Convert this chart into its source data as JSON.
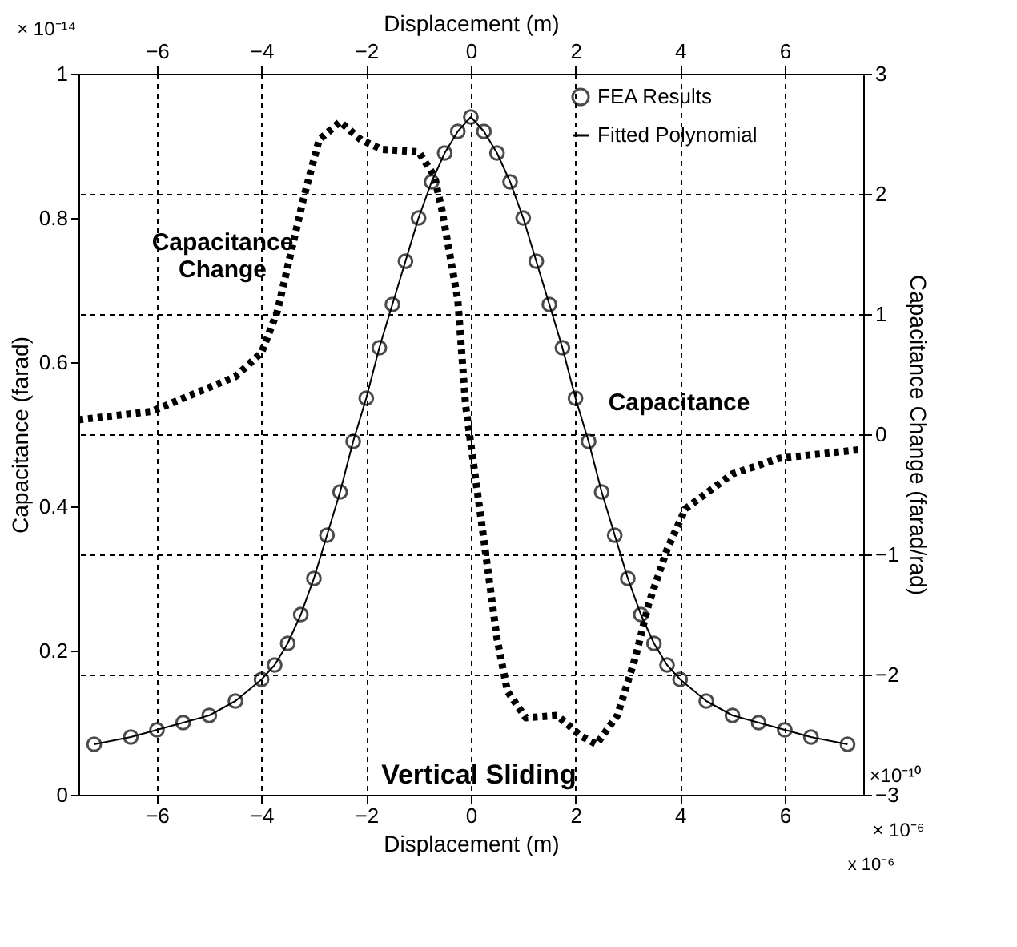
{
  "chart_data": {
    "type": "line",
    "xlabel": "Displacement (m)",
    "ylabel": "Capacitance (farad)",
    "y2label": "Capacitance Change (farad/rad)",
    "x2label": "Displacement (m)",
    "xlim": [
      -7.5,
      7.5
    ],
    "xticks": [
      -6,
      -4,
      -2,
      0,
      2,
      4,
      6
    ],
    "x2lim": [
      -7.5,
      7.5
    ],
    "x2ticks": [
      -6,
      -4,
      -2,
      0,
      2,
      4,
      6
    ],
    "ylim": [
      0,
      1
    ],
    "yticks": [
      0,
      0.2,
      0.4,
      0.6,
      0.8,
      1
    ],
    "y2lim": [
      -3,
      3
    ],
    "y2ticks": [
      -3,
      -2,
      -1,
      0,
      1,
      2,
      3
    ],
    "grid": true,
    "legend": "top right",
    "annotations": [
      "Capacitance\nChange",
      "Capacitance",
      "Vertical Sliding",
      "× 10⁻¹⁴",
      "× 10⁻⁶",
      "x 10⁻⁶",
      "×10⁻¹⁰"
    ],
    "series": [
      {
        "name": "FEA Results",
        "type": "scatter",
        "marker": "circle",
        "color": "#000000",
        "x": [
          -7.2,
          -6.5,
          -6,
          -5.5,
          -5,
          -4.5,
          -4,
          -3.75,
          -3.5,
          -3.25,
          -3,
          -2.75,
          -2.5,
          -2.25,
          -2,
          -1.75,
          -1.5,
          -1.25,
          -1,
          -0.75,
          -0.5,
          -0.25,
          0,
          0.25,
          0.5,
          0.75,
          1,
          1.25,
          1.5,
          1.75,
          2,
          2.25,
          2.5,
          2.75,
          3,
          3.25,
          3.5,
          3.75,
          4,
          4.5,
          5,
          5.5,
          6,
          6.5,
          7.2
        ],
        "values": [
          0.07,
          0.08,
          0.09,
          0.1,
          0.11,
          0.13,
          0.16,
          0.18,
          0.21,
          0.25,
          0.3,
          0.36,
          0.42,
          0.49,
          0.55,
          0.62,
          0.68,
          0.74,
          0.8,
          0.85,
          0.89,
          0.92,
          0.94,
          0.92,
          0.89,
          0.85,
          0.8,
          0.74,
          0.68,
          0.62,
          0.55,
          0.49,
          0.42,
          0.36,
          0.3,
          0.25,
          0.21,
          0.18,
          0.16,
          0.13,
          0.11,
          0.1,
          0.09,
          0.08,
          0.07
        ]
      },
      {
        "name": "Fitted Polynomial",
        "type": "line",
        "line_style": "solid",
        "color": "#000000",
        "x": [
          -7.2,
          -6.5,
          -6,
          -5.5,
          -5,
          -4.5,
          -4,
          -3.75,
          -3.5,
          -3.25,
          -3,
          -2.75,
          -2.5,
          -2.25,
          -2,
          -1.75,
          -1.5,
          -1.25,
          -1,
          -0.75,
          -0.5,
          -0.25,
          0,
          0.25,
          0.5,
          0.75,
          1,
          1.25,
          1.5,
          1.75,
          2,
          2.25,
          2.5,
          2.75,
          3,
          3.25,
          3.5,
          3.75,
          4,
          4.5,
          5,
          5.5,
          6,
          6.5,
          7.2
        ],
        "values": [
          0.07,
          0.08,
          0.09,
          0.1,
          0.11,
          0.13,
          0.16,
          0.18,
          0.21,
          0.25,
          0.3,
          0.36,
          0.42,
          0.49,
          0.55,
          0.62,
          0.68,
          0.74,
          0.8,
          0.85,
          0.89,
          0.92,
          0.94,
          0.92,
          0.89,
          0.85,
          0.8,
          0.74,
          0.68,
          0.62,
          0.55,
          0.49,
          0.42,
          0.36,
          0.3,
          0.25,
          0.21,
          0.18,
          0.16,
          0.13,
          0.11,
          0.1,
          0.09,
          0.08,
          0.07
        ]
      },
      {
        "type": "line",
        "axis": "y2",
        "line_style": "dotted",
        "color": "#000000",
        "x": [
          -7.5,
          -6.1,
          -4.5,
          -4.0,
          -3.7,
          -3.2,
          -2.9,
          -2.5,
          -2.1,
          -1.7,
          -1.0,
          -0.7,
          -0.55,
          -0.25,
          -0.1,
          0.03,
          0.2,
          0.5,
          0.7,
          1.05,
          1.65,
          2.1,
          2.4,
          2.8,
          3.15,
          3.4,
          3.75,
          4.1,
          5.0,
          5.9,
          7.4
        ],
        "values": [
          0.12,
          0.19,
          0.48,
          0.68,
          1.02,
          1.96,
          2.45,
          2.6,
          2.45,
          2.37,
          2.35,
          2.15,
          1.86,
          1.12,
          0.24,
          -0.18,
          -0.72,
          -1.7,
          -2.14,
          -2.36,
          -2.34,
          -2.51,
          -2.58,
          -2.34,
          -1.85,
          -1.41,
          -0.96,
          -0.62,
          -0.33,
          -0.2,
          -0.13
        ]
      }
    ]
  }
}
